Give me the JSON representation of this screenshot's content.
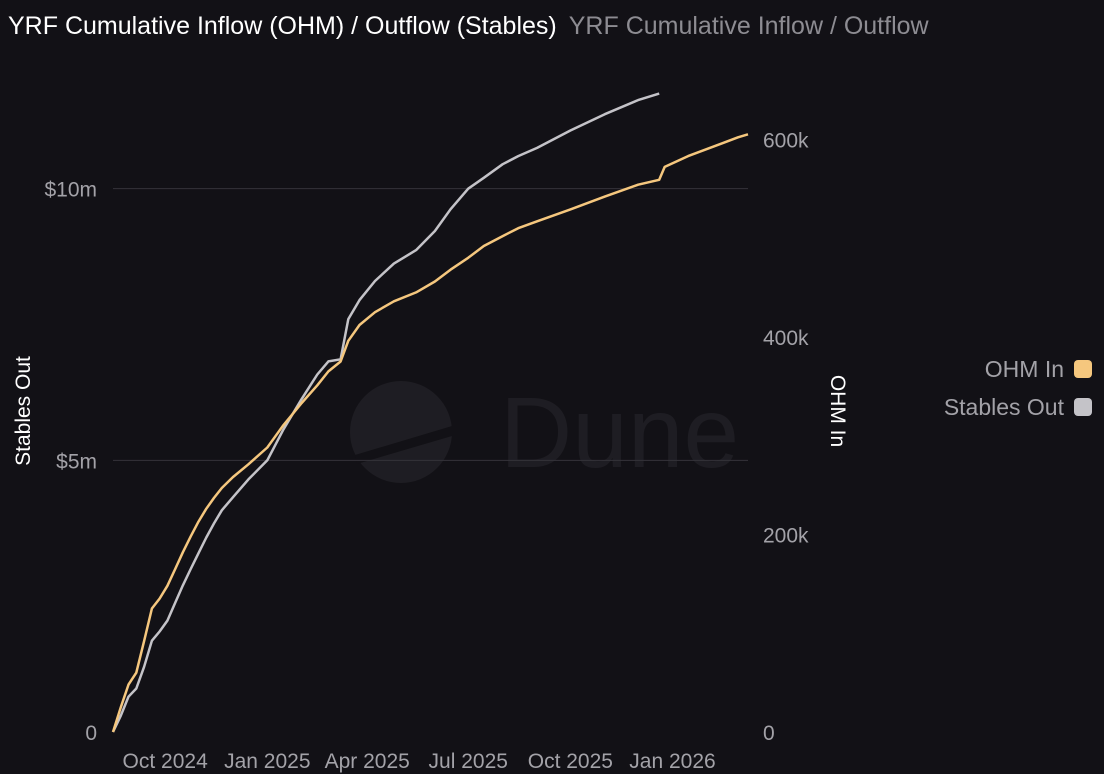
{
  "header": {
    "title": "YRF Cumulative Inflow (OHM) / Outflow (Stables)",
    "subtitle": "YRF Cumulative Inflow / Outflow"
  },
  "watermark": "Dune",
  "colors": {
    "background": "#121116",
    "ohm_in": "#f5c77e",
    "stables_out": "#c4c3c8",
    "grid": "#34333a",
    "tick_text": "#a3a2a8",
    "axis_title": "#ffffff"
  },
  "legend": {
    "position": "right",
    "items": [
      {
        "label": "OHM In",
        "color": "#f5c77e"
      },
      {
        "label": "Stables Out",
        "color": "#c4c3c8"
      }
    ]
  },
  "chart_data": {
    "type": "line",
    "title": "YRF Cumulative Inflow (OHM) / Outflow (Stables)",
    "xlabel": "",
    "ylabel_left": "Stables Out",
    "ylabel_right": "OHM In",
    "xlim": [
      "2024-08-15",
      "2026-03-10"
    ],
    "ylim_left": [
      0,
      12000000
    ],
    "ylim_right": [
      0,
      660000
    ],
    "grid": true,
    "x_ticks": [
      {
        "date": "2024-10-01",
        "label": "Oct 2024"
      },
      {
        "date": "2025-01-01",
        "label": "Jan 2025"
      },
      {
        "date": "2025-04-01",
        "label": "Apr 2025"
      },
      {
        "date": "2025-07-01",
        "label": "Jul 2025"
      },
      {
        "date": "2025-10-01",
        "label": "Oct 2025"
      },
      {
        "date": "2026-01-01",
        "label": "Jan 2026"
      }
    ],
    "y_ticks_left": [
      {
        "value": 0,
        "label": "0"
      },
      {
        "value": 5000000,
        "label": "$5m"
      },
      {
        "value": 10000000,
        "label": "$10m"
      }
    ],
    "y_ticks_right": [
      {
        "value": 0,
        "label": "0"
      },
      {
        "value": 200000,
        "label": "200k"
      },
      {
        "value": 400000,
        "label": "400k"
      },
      {
        "value": 600000,
        "label": "600k"
      }
    ],
    "series": [
      {
        "name": "OHM In",
        "axis": "right",
        "color": "#f5c77e",
        "points": [
          [
            "2024-08-15",
            0
          ],
          [
            "2024-08-22",
            25000
          ],
          [
            "2024-08-29",
            48000
          ],
          [
            "2024-09-05",
            60000
          ],
          [
            "2024-09-12",
            92000
          ],
          [
            "2024-09-19",
            125000
          ],
          [
            "2024-09-26",
            135000
          ],
          [
            "2024-10-03",
            148000
          ],
          [
            "2024-10-10",
            165000
          ],
          [
            "2024-10-17",
            182000
          ],
          [
            "2024-10-24",
            198000
          ],
          [
            "2024-10-31",
            213000
          ],
          [
            "2024-11-07",
            226000
          ],
          [
            "2024-11-14",
            237000
          ],
          [
            "2024-11-21",
            247000
          ],
          [
            "2024-12-01",
            258000
          ],
          [
            "2024-12-15",
            271000
          ],
          [
            "2025-01-01",
            288000
          ],
          [
            "2025-01-15",
            310000
          ],
          [
            "2025-02-01",
            333000
          ],
          [
            "2025-02-15",
            351000
          ],
          [
            "2025-02-25",
            365000
          ],
          [
            "2025-03-08",
            375000
          ],
          [
            "2025-03-15",
            396000
          ],
          [
            "2025-03-25",
            412000
          ],
          [
            "2025-04-08",
            425000
          ],
          [
            "2025-04-25",
            436000
          ],
          [
            "2025-05-15",
            445000
          ],
          [
            "2025-06-01",
            456000
          ],
          [
            "2025-06-15",
            468000
          ],
          [
            "2025-07-01",
            480000
          ],
          [
            "2025-07-15",
            492000
          ],
          [
            "2025-08-01",
            502000
          ],
          [
            "2025-08-15",
            510000
          ],
          [
            "2025-09-01",
            517000
          ],
          [
            "2025-10-01",
            529000
          ],
          [
            "2025-11-01",
            542000
          ],
          [
            "2025-12-01",
            554000
          ],
          [
            "2025-12-20",
            559000
          ],
          [
            "2025-12-25",
            572000
          ],
          [
            "2026-01-15",
            583000
          ],
          [
            "2026-02-15",
            596000
          ],
          [
            "2026-03-01",
            602000
          ],
          [
            "2026-03-10",
            605000
          ]
        ]
      },
      {
        "name": "Stables Out",
        "axis": "left",
        "color": "#c4c3c8",
        "points": [
          [
            "2024-08-15",
            0
          ],
          [
            "2024-08-22",
            300000
          ],
          [
            "2024-08-29",
            650000
          ],
          [
            "2024-09-05",
            800000
          ],
          [
            "2024-09-12",
            1200000
          ],
          [
            "2024-09-19",
            1680000
          ],
          [
            "2024-09-26",
            1850000
          ],
          [
            "2024-10-03",
            2050000
          ],
          [
            "2024-10-10",
            2380000
          ],
          [
            "2024-10-17",
            2700000
          ],
          [
            "2024-10-24",
            3000000
          ],
          [
            "2024-10-31",
            3290000
          ],
          [
            "2024-11-07",
            3580000
          ],
          [
            "2024-11-14",
            3840000
          ],
          [
            "2024-11-21",
            4080000
          ],
          [
            "2024-12-01",
            4320000
          ],
          [
            "2024-12-15",
            4650000
          ],
          [
            "2025-01-01",
            5000000
          ],
          [
            "2025-01-15",
            5550000
          ],
          [
            "2025-02-01",
            6130000
          ],
          [
            "2025-02-15",
            6580000
          ],
          [
            "2025-02-25",
            6820000
          ],
          [
            "2025-03-08",
            6860000
          ],
          [
            "2025-03-15",
            7600000
          ],
          [
            "2025-03-25",
            7950000
          ],
          [
            "2025-04-08",
            8300000
          ],
          [
            "2025-04-25",
            8620000
          ],
          [
            "2025-05-15",
            8870000
          ],
          [
            "2025-06-01",
            9220000
          ],
          [
            "2025-06-15",
            9620000
          ],
          [
            "2025-07-01",
            10000000
          ],
          [
            "2025-07-15",
            10200000
          ],
          [
            "2025-08-01",
            10450000
          ],
          [
            "2025-08-15",
            10600000
          ],
          [
            "2025-09-01",
            10750000
          ],
          [
            "2025-10-01",
            11070000
          ],
          [
            "2025-11-01",
            11370000
          ],
          [
            "2025-12-01",
            11630000
          ],
          [
            "2025-12-20",
            11750000
          ]
        ]
      }
    ]
  }
}
